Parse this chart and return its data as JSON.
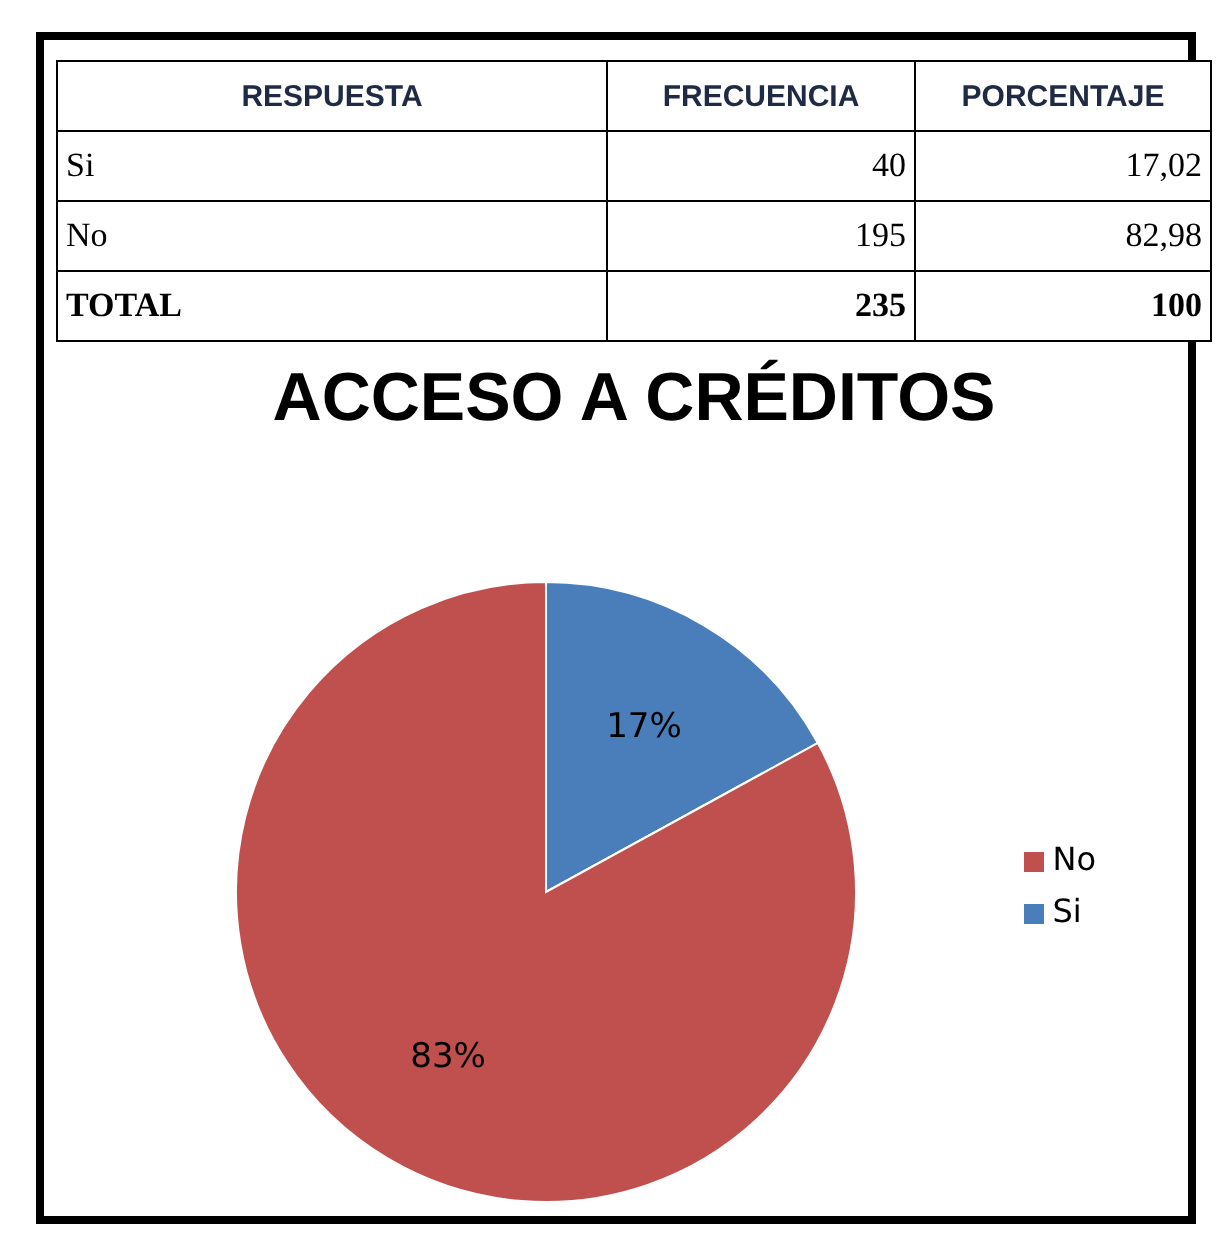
{
  "chart_data": {
    "type": "pie",
    "title": "ACCESO A CRÉDITOS",
    "categories": [
      "Si",
      "No"
    ],
    "values": [
      17.02,
      82.98
    ],
    "colors": [
      "#4a7ebb",
      "#c0504d"
    ],
    "value_labels": [
      "17%",
      "83%"
    ],
    "legend": "right",
    "annotations": [
      "RESPUESTA",
      "FRECUENCIA",
      "PORCENTAJE",
      "40",
      "195",
      "17,02",
      "82,98",
      "TOTAL",
      "235",
      "100"
    ]
  }
}
